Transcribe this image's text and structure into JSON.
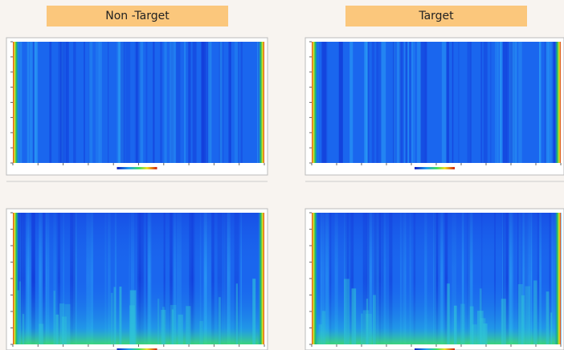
{
  "header": {
    "left": "Non -Target",
    "right": "Target"
  }
}
